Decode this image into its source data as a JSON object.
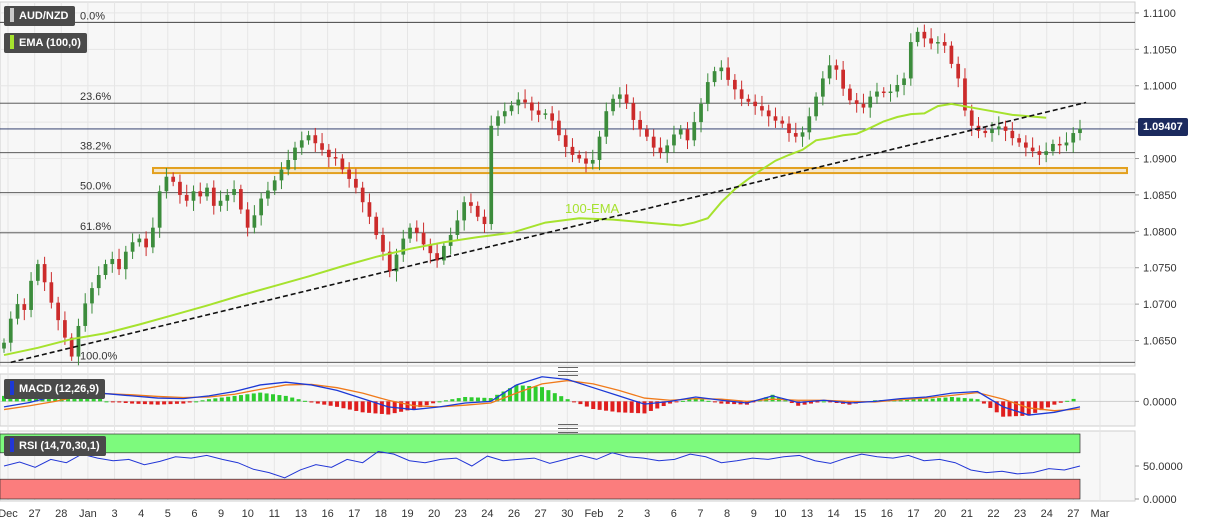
{
  "header": {
    "symbol": "AUD/NZD",
    "ema_label": "EMA (100,0)",
    "macd_label": "MACD (12,26,9)",
    "rsi_label": "RSI (14,70,30,1)",
    "last_price": "1.09407"
  },
  "colors": {
    "ema": "#a6e22e",
    "candle_up": "#3c8c3c",
    "candle_down": "#cc2b2b",
    "macd_line": "#1c39d6",
    "signal_line": "#f07a1a",
    "hist_pos": "#2ecc2e",
    "hist_neg": "#e01e1e",
    "rsi_line": "#2236d6",
    "rsi_overbought": "#7dfa7d",
    "rsi_oversold": "#fb7d7d",
    "support_zone": "#e3a01e",
    "price_tag": "#1b2a5e"
  },
  "chart_data": [
    {
      "type": "candlestick",
      "title": "AUD/NZD",
      "y_ticks": [
        "1.1100",
        "1.1050",
        "1.1000",
        "1.0950",
        "1.0900",
        "1.0850",
        "1.0800",
        "1.0750",
        "1.0700",
        "1.0650"
      ],
      "ylim": [
        1.0615,
        1.1115
      ],
      "x_ticks": [
        "Dec",
        "27",
        "28",
        "Jan",
        "3",
        "4",
        "5",
        "6",
        "9",
        "10",
        "11",
        "13",
        "16",
        "17",
        "18",
        "19",
        "20",
        "23",
        "24",
        "26",
        "27",
        "30",
        "Feb",
        "2",
        "3",
        "6",
        "7",
        "8",
        "9",
        "10",
        "13",
        "14",
        "15",
        "16",
        "17",
        "20",
        "21",
        "22",
        "23",
        "24",
        "27",
        "Mar"
      ],
      "fibonacci": [
        {
          "label": "0.0%",
          "value": 1.1087
        },
        {
          "label": "23.6%",
          "value": 1.0976
        },
        {
          "label": "38.2%",
          "value": 1.0908
        },
        {
          "label": "50.0%",
          "value": 1.0853
        },
        {
          "label": "61.8%",
          "value": 1.0798
        },
        {
          "label": "100.0%",
          "value": 1.062
        }
      ],
      "support_zone": [
        1.088,
        1.0887
      ],
      "trendline": {
        "from": [
          1,
          1.062
        ],
        "to": [
          154,
          1.0966
        ]
      },
      "ema_label": "100-EMA",
      "last_price": 1.09407,
      "closes": [
        1.0647,
        1.068,
        1.07,
        1.0692,
        1.0732,
        1.0755,
        1.073,
        1.0702,
        1.0678,
        1.0654,
        1.0628,
        1.067,
        1.0701,
        1.0722,
        1.074,
        1.0755,
        1.0762,
        1.0748,
        1.0772,
        1.0785,
        1.079,
        1.0778,
        1.0805,
        1.0855,
        1.0875,
        1.0868,
        1.085,
        1.0842,
        1.0855,
        1.0848,
        1.086,
        1.0835,
        1.0842,
        1.085,
        1.0858,
        1.083,
        1.0805,
        1.0822,
        1.0845,
        1.0856,
        1.087,
        1.0885,
        1.0898,
        1.0915,
        1.0925,
        1.0932,
        1.0921,
        1.0912,
        1.0902,
        1.09,
        1.0885,
        1.0872,
        1.086,
        1.084,
        1.082,
        1.0795,
        1.0772,
        1.0745,
        1.0768,
        1.079,
        1.0805,
        1.0798,
        1.0782,
        1.077,
        1.076,
        1.078,
        1.0795,
        1.0815,
        1.084,
        1.0835,
        1.082,
        1.081,
        1.0945,
        1.0958,
        1.0965,
        1.0973,
        1.0981,
        1.0977,
        1.0966,
        1.096,
        1.0962,
        1.0952,
        1.0932,
        1.0916,
        1.0905,
        1.09,
        1.0893,
        1.0898,
        1.093,
        1.0965,
        1.0982,
        1.0988,
        1.0976,
        1.0953,
        1.094,
        1.093,
        1.0915,
        1.0908,
        1.0918,
        1.0933,
        1.094,
        1.0925,
        1.095,
        1.0975,
        1.1005,
        1.102,
        1.1025,
        1.1008,
        1.0995,
        1.0982,
        1.0978,
        1.0972,
        1.0966,
        1.0958,
        1.0952,
        1.0948,
        1.0935,
        1.093,
        1.0936,
        1.0958,
        1.0985,
        1.101,
        1.1028,
        1.1022,
        1.0996,
        1.098,
        1.0975,
        1.097,
        1.0985,
        1.0992,
        1.099,
        1.0992,
        1.1001,
        1.101,
        1.106,
        1.1074,
        1.1065,
        1.1058,
        1.106,
        1.1055,
        1.103,
        1.101,
        1.0966,
        1.0945,
        1.0938,
        1.0935,
        1.094,
        1.0944,
        1.0938,
        1.0928,
        1.0922,
        1.0915,
        1.091,
        1.0905,
        1.091,
        1.092,
        1.0918,
        1.0922,
        1.0935,
        1.0941
      ],
      "ema_values": [
        1.063,
        1.064,
        1.0652,
        1.066,
        1.0672,
        1.0685,
        1.0698,
        1.0712,
        1.0725,
        1.0738,
        1.0752,
        1.0765,
        1.0776,
        1.0785,
        1.0792,
        1.0798,
        1.0812,
        1.0818,
        1.0816,
        1.0812,
        1.0808,
        1.0812,
        1.0818,
        1.084,
        1.0858,
        1.0872,
        1.0885,
        1.0897,
        1.0905,
        1.0912,
        1.0925,
        1.0928,
        1.0932,
        1.0934,
        1.0942,
        1.0951,
        1.0957,
        1.0961,
        1.0962,
        1.0972,
        1.0975,
        1.097,
        1.0965,
        1.096,
        1.0956
      ],
      "ema_x": [
        0,
        5,
        10,
        15,
        20,
        25,
        30,
        35,
        40,
        45,
        50,
        55,
        60,
        65,
        70,
        75,
        80,
        85,
        90,
        95,
        100,
        102,
        104,
        106,
        108,
        110,
        112,
        114,
        116,
        118,
        120,
        122,
        124,
        126,
        128,
        130,
        132,
        134,
        136,
        138,
        140,
        143,
        146,
        149,
        154
      ]
    },
    {
      "type": "line",
      "title": "MACD (12,26,9)",
      "y_ticks": [
        "0.0000"
      ],
      "ylim": [
        -0.0045,
        0.005
      ],
      "series": [
        {
          "name": "MACD",
          "values": [
            -0.001,
            -0.0002,
            0.001,
            0.002,
            0.0014,
            0.001,
            0.0006,
            0.0005,
            0.001,
            0.0018,
            0.003,
            0.0035,
            0.003,
            0.002,
            0.0005,
            -0.001,
            -0.0015,
            -0.001,
            -0.0003,
            0.0,
            0.003,
            0.0045,
            0.004,
            0.0025,
            0.001,
            -0.0005,
            0.0,
            0.0008,
            0.0002,
            -0.0003,
            0.001,
            -0.0002,
            0.0002,
            -0.0003,
            0.0,
            0.0005,
            0.0008,
            0.0015,
            0.0018,
            -0.001,
            -0.0025,
            -0.002,
            -0.001
          ]
        },
        {
          "name": "Signal",
          "values": [
            -0.0015,
            -0.0008,
            0.0,
            0.001,
            0.0014,
            0.0012,
            0.0009,
            0.0007,
            0.0008,
            0.0013,
            0.0022,
            0.003,
            0.0031,
            0.0025,
            0.0015,
            0.0002,
            -0.0008,
            -0.001,
            -0.0007,
            -0.0003,
            0.0015,
            0.0032,
            0.0038,
            0.0032,
            0.002,
            0.0006,
            0.0002,
            0.0005,
            0.0004,
            0.0,
            0.0004,
            0.0002,
            0.0002,
            0.0,
            -0.0001,
            0.0003,
            0.0006,
            0.0011,
            0.0016,
            0.0004,
            -0.0012,
            -0.0017,
            -0.0014
          ]
        }
      ]
    },
    {
      "type": "line",
      "title": "RSI (14,70,30,1)",
      "y_ticks": [
        "50.0000",
        "0.0000"
      ],
      "ylim": [
        0,
        100
      ],
      "zones": {
        "overbought": 70,
        "oversold": 30
      },
      "series": [
        {
          "name": "RSI",
          "values": [
            50,
            56,
            48,
            60,
            55,
            68,
            62,
            58,
            60,
            52,
            57,
            64,
            62,
            66,
            60,
            55,
            45,
            40,
            32,
            44,
            52,
            48,
            60,
            55,
            72,
            68,
            58,
            55,
            60,
            62,
            50,
            65,
            58,
            60,
            62,
            54,
            60,
            66,
            60,
            70,
            64,
            62,
            58,
            60,
            68,
            64,
            55,
            58,
            62,
            60,
            64,
            66,
            58,
            54,
            62,
            68,
            64,
            62,
            66,
            58,
            60,
            55,
            44,
            40,
            42,
            38,
            40,
            46,
            44,
            50
          ]
        }
      ]
    }
  ]
}
